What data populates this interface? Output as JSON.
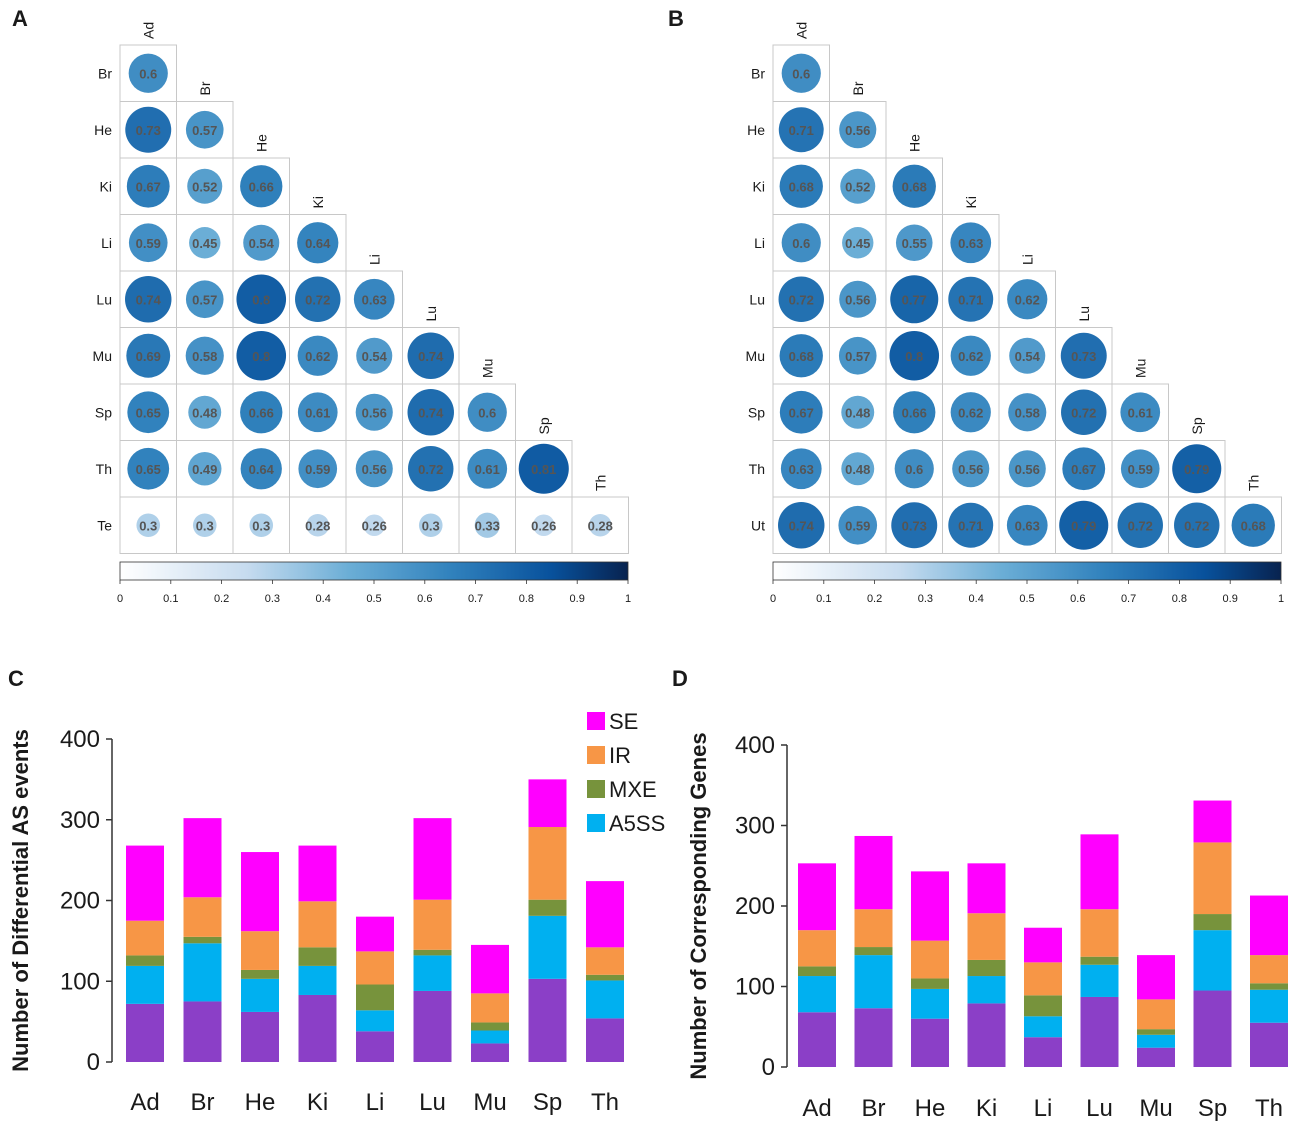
{
  "panels": {
    "A": "A",
    "B": "B",
    "C": "C",
    "D": "D"
  },
  "colors": {
    "SE": "#ff00ff",
    "IR": "#f79646",
    "MXE": "#77933c",
    "A5SS": "#00b0f0",
    "base": "#8b3fc7",
    "grid": "#c8c8c8",
    "cmap_low": "#ffffff",
    "cmap_high": "#0a2a5e"
  },
  "chart_data": [
    {
      "type": "heatmap",
      "panel": "A",
      "col_labels": [
        "Ad",
        "Br",
        "He",
        "Ki",
        "Li",
        "Lu",
        "Mu",
        "Sp",
        "Th"
      ],
      "row_labels": [
        "Br",
        "He",
        "Ki",
        "Li",
        "Lu",
        "Mu",
        "Sp",
        "Th",
        "Te"
      ],
      "values": [
        [
          0.6
        ],
        [
          0.73,
          0.57
        ],
        [
          0.67,
          0.52,
          0.66
        ],
        [
          0.59,
          0.45,
          0.54,
          0.64
        ],
        [
          0.74,
          0.57,
          0.8,
          0.72,
          0.63
        ],
        [
          0.69,
          0.58,
          0.8,
          0.62,
          0.54,
          0.74
        ],
        [
          0.65,
          0.48,
          0.66,
          0.61,
          0.56,
          0.74,
          0.6
        ],
        [
          0.65,
          0.49,
          0.64,
          0.59,
          0.56,
          0.72,
          0.61,
          0.81
        ],
        [
          0.3,
          0.3,
          0.3,
          0.28,
          0.26,
          0.3,
          0.33,
          0.26,
          0.28
        ]
      ],
      "colorbar_ticks": [
        "0",
        "0.1",
        "0.2",
        "0.3",
        "0.4",
        "0.5",
        "0.6",
        "0.7",
        "0.8",
        "0.9",
        "1"
      ],
      "range": [
        0,
        1
      ]
    },
    {
      "type": "heatmap",
      "panel": "B",
      "col_labels": [
        "Ad",
        "Br",
        "He",
        "Ki",
        "Li",
        "Lu",
        "Mu",
        "Sp",
        "Th"
      ],
      "row_labels": [
        "Br",
        "He",
        "Ki",
        "Li",
        "Lu",
        "Mu",
        "Sp",
        "Th",
        "Ut"
      ],
      "values": [
        [
          0.6
        ],
        [
          0.71,
          0.56
        ],
        [
          0.68,
          0.52,
          0.68
        ],
        [
          0.6,
          0.45,
          0.55,
          0.63
        ],
        [
          0.72,
          0.56,
          0.77,
          0.71,
          0.62
        ],
        [
          0.68,
          0.57,
          0.8,
          0.62,
          0.54,
          0.73
        ],
        [
          0.67,
          0.48,
          0.66,
          0.62,
          0.58,
          0.72,
          0.61
        ],
        [
          0.63,
          0.48,
          0.6,
          0.56,
          0.56,
          0.67,
          0.59,
          0.79
        ],
        [
          0.74,
          0.59,
          0.73,
          0.71,
          0.63,
          0.79,
          0.72,
          0.72,
          0.68
        ]
      ],
      "colorbar_ticks": [
        "0",
        "0.1",
        "0.2",
        "0.3",
        "0.4",
        "0.5",
        "0.6",
        "0.7",
        "0.8",
        "0.9",
        "1"
      ],
      "range": [
        0,
        1
      ]
    },
    {
      "type": "bar",
      "panel": "C",
      "stacked": true,
      "categories": [
        "Ad",
        "Br",
        "He",
        "Ki",
        "Li",
        "Lu",
        "Mu",
        "Sp",
        "Th"
      ],
      "ylabel": "Number of Differential AS events",
      "ylim": [
        0,
        400
      ],
      "yticks": [
        "0",
        "100",
        "200",
        "300",
        "400"
      ],
      "legend": [
        "SE",
        "IR",
        "MXE",
        "A5SS"
      ],
      "series": [
        {
          "key": "base",
          "values": [
            72,
            75,
            62,
            83,
            38,
            88,
            23,
            103,
            54
          ]
        },
        {
          "name": "A5SS",
          "key": "A5SS",
          "values": [
            47,
            72,
            41,
            36,
            26,
            44,
            16,
            78,
            47
          ]
        },
        {
          "name": "MXE",
          "key": "MXE",
          "values": [
            13,
            8,
            11,
            23,
            32,
            7,
            10,
            20,
            7
          ]
        },
        {
          "name": "IR",
          "key": "IR",
          "values": [
            43,
            49,
            48,
            57,
            41,
            62,
            36,
            90,
            34
          ]
        },
        {
          "name": "SE",
          "key": "SE",
          "values": [
            93,
            98,
            98,
            69,
            43,
            101,
            60,
            59,
            82
          ]
        }
      ]
    },
    {
      "type": "bar",
      "panel": "D",
      "stacked": true,
      "categories": [
        "Ad",
        "Br",
        "He",
        "Ki",
        "Li",
        "Lu",
        "Mu",
        "Sp",
        "Th"
      ],
      "ylabel": "Number of Corresponding Genes",
      "ylim": [
        0,
        400
      ],
      "yticks": [
        "0",
        "100",
        "200",
        "300",
        "400"
      ],
      "series": [
        {
          "key": "base",
          "values": [
            68,
            73,
            60,
            79,
            37,
            87,
            24,
            95,
            55
          ]
        },
        {
          "name": "A5SS",
          "key": "A5SS",
          "values": [
            45,
            66,
            37,
            34,
            26,
            40,
            16,
            75,
            41
          ]
        },
        {
          "name": "MXE",
          "key": "MXE",
          "values": [
            12,
            10,
            13,
            20,
            26,
            10,
            7,
            20,
            8
          ]
        },
        {
          "name": "IR",
          "key": "IR",
          "values": [
            45,
            47,
            47,
            58,
            41,
            59,
            37,
            89,
            35
          ]
        },
        {
          "name": "SE",
          "key": "SE",
          "values": [
            83,
            91,
            86,
            62,
            43,
            93,
            55,
            52,
            74
          ]
        }
      ]
    }
  ]
}
